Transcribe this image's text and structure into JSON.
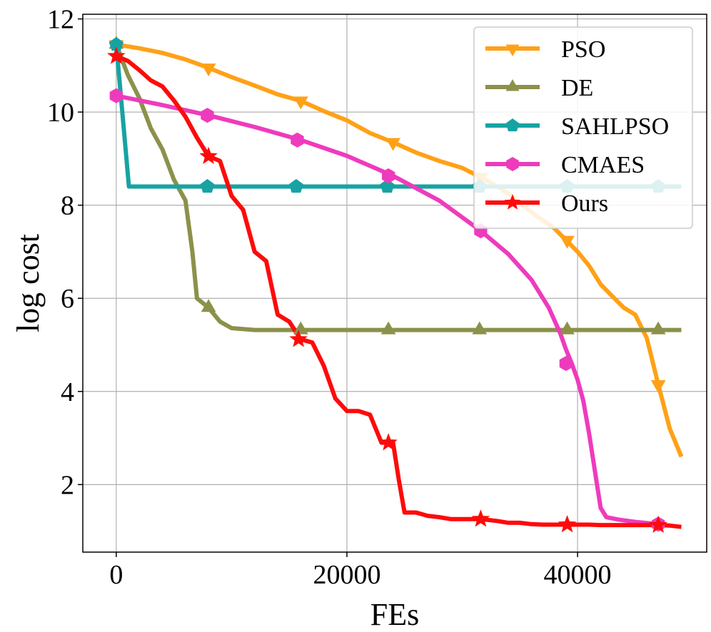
{
  "chart_data": {
    "type": "line",
    "title": "",
    "xlabel": "FEs",
    "ylabel": "log cost",
    "xlim": [
      -2900,
      51200
    ],
    "ylim": [
      0.55,
      12.1
    ],
    "xticks": [
      0,
      20000,
      40000
    ],
    "xtick_labels": [
      "0",
      "20000",
      "40000"
    ],
    "yticks": [
      2,
      4,
      6,
      8,
      10,
      12
    ],
    "ytick_labels": [
      "2",
      "4",
      "6",
      "8",
      "10",
      "12"
    ],
    "grid": true,
    "legend_position": "top-right",
    "series": [
      {
        "name": "PSO",
        "color": "#FFA117",
        "marker": "triangle-down",
        "x": [
          0,
          2000,
          4000,
          6000,
          8000,
          10000,
          12000,
          14000,
          16000,
          18000,
          20000,
          22000,
          24000,
          26000,
          28000,
          30000,
          32000,
          34000,
          36000,
          38000,
          39000,
          40000,
          41000,
          42000,
          43000,
          44000,
          45000,
          46000,
          47000,
          48000,
          49000
        ],
        "y": [
          11.45,
          11.37,
          11.27,
          11.13,
          10.95,
          10.75,
          10.57,
          10.38,
          10.24,
          10.02,
          9.82,
          9.55,
          9.35,
          9.13,
          8.95,
          8.8,
          8.55,
          8.25,
          7.85,
          7.5,
          7.25,
          7.0,
          6.7,
          6.3,
          6.05,
          5.8,
          5.65,
          5.15,
          4.15,
          3.2,
          2.6
        ],
        "marker_x": [
          0,
          8000,
          16000,
          24000,
          31600,
          39100,
          47000
        ],
        "marker_y": [
          11.45,
          10.95,
          10.24,
          9.35,
          8.6,
          7.25,
          4.15
        ]
      },
      {
        "name": "DE",
        "color": "#8C914A",
        "marker": "triangle-up",
        "x": [
          0,
          1000,
          2000,
          3000,
          4000,
          5000,
          6000,
          6600,
          7000,
          8000,
          9000,
          10000,
          12000,
          16000,
          24000,
          32000,
          40000,
          49000
        ],
        "y": [
          11.45,
          10.8,
          10.3,
          9.65,
          9.2,
          8.55,
          8.1,
          7.0,
          6.0,
          5.8,
          5.5,
          5.36,
          5.32,
          5.32,
          5.32,
          5.32,
          5.32,
          5.32
        ],
        "marker_x": [
          0,
          8000,
          16000,
          23600,
          31500,
          39100,
          47000
        ],
        "marker_y": [
          11.45,
          5.8,
          5.32,
          5.32,
          5.32,
          5.32,
          5.32
        ]
      },
      {
        "name": "SAHLPSO",
        "color": "#17A3A3",
        "marker": "pentagon",
        "x": [
          0,
          1100,
          8000,
          16000,
          24000,
          32000,
          40000,
          49000
        ],
        "y": [
          11.45,
          8.4,
          8.4,
          8.4,
          8.4,
          8.4,
          8.4,
          8.4
        ],
        "marker_x": [
          0,
          7900,
          15600,
          23500,
          31500,
          39100,
          47000
        ],
        "marker_y": [
          11.45,
          8.4,
          8.4,
          8.4,
          8.4,
          8.4,
          8.4
        ]
      },
      {
        "name": "CMAES",
        "color": "#EE3BBD",
        "marker": "hexagon",
        "x": [
          0,
          4000,
          8000,
          12000,
          16000,
          20000,
          24000,
          28000,
          31600,
          34000,
          36000,
          37500,
          38500,
          39000,
          39500,
          40000,
          40500,
          41000,
          41500,
          42000,
          42500,
          43500,
          45000,
          47000
        ],
        "y": [
          10.35,
          10.15,
          9.93,
          9.68,
          9.4,
          9.06,
          8.63,
          8.1,
          7.45,
          6.95,
          6.4,
          5.8,
          5.25,
          4.9,
          4.6,
          4.25,
          3.8,
          3.1,
          2.3,
          1.5,
          1.3,
          1.25,
          1.2,
          1.15
        ],
        "marker_x": [
          0,
          7900,
          15700,
          23600,
          31600,
          39000,
          47000
        ],
        "marker_y": [
          10.35,
          9.93,
          9.4,
          8.63,
          7.45,
          4.6,
          1.15
        ]
      },
      {
        "name": "Ours",
        "color": "#FF0A0A",
        "marker": "star",
        "x": [
          0,
          500,
          1000,
          2000,
          3000,
          4000,
          5000,
          6000,
          7000,
          8000,
          9000,
          10000,
          11000,
          12000,
          13000,
          14000,
          15000,
          16000,
          17000,
          18000,
          19000,
          20000,
          21000,
          22000,
          23000,
          24000,
          24500,
          25000,
          26000,
          27000,
          28000,
          29000,
          30000,
          31600,
          33000,
          34000,
          35000,
          36000,
          37000,
          38000,
          39000,
          40000,
          41000,
          42000,
          44000,
          46000,
          47000,
          48000,
          49000
        ],
        "y": [
          11.2,
          11.15,
          11.1,
          10.9,
          10.68,
          10.55,
          10.25,
          9.9,
          9.45,
          9.05,
          8.95,
          8.2,
          7.9,
          7.0,
          6.8,
          5.65,
          5.5,
          5.12,
          5.05,
          4.55,
          3.85,
          3.58,
          3.58,
          3.5,
          2.9,
          2.9,
          2.1,
          1.4,
          1.4,
          1.33,
          1.3,
          1.26,
          1.26,
          1.26,
          1.22,
          1.18,
          1.18,
          1.15,
          1.14,
          1.14,
          1.14,
          1.14,
          1.14,
          1.13,
          1.13,
          1.13,
          1.13,
          1.12,
          1.09
        ],
        "marker_x": [
          0,
          8000,
          15800,
          23600,
          31600,
          39100,
          47000
        ],
        "marker_y": [
          11.2,
          9.05,
          5.12,
          2.9,
          1.26,
          1.14,
          1.13
        ]
      }
    ]
  }
}
